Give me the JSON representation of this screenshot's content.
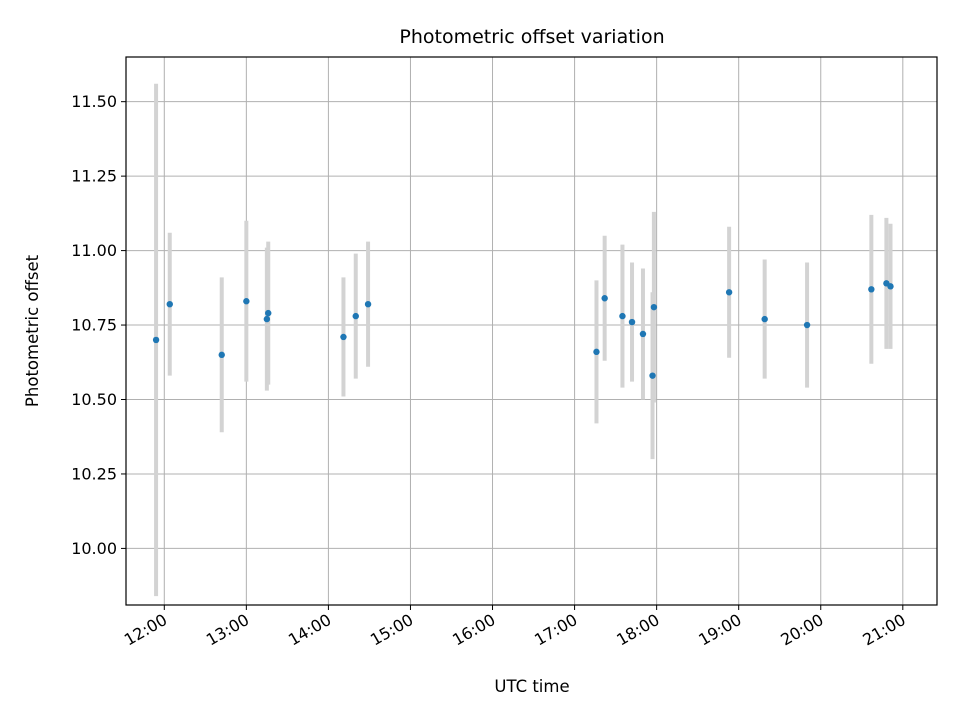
{
  "chart_data": {
    "type": "scatter",
    "title": "Photometric offset variation",
    "xlabel": "UTC time",
    "ylabel": "Photometric offset",
    "x_ticks": [
      "12:00",
      "13:00",
      "14:00",
      "15:00",
      "16:00",
      "17:00",
      "18:00",
      "19:00",
      "20:00",
      "21:00"
    ],
    "y_ticks": [
      "10.00",
      "10.25",
      "10.50",
      "10.75",
      "11.00",
      "11.25",
      "11.50"
    ],
    "xlim": [
      "11:32",
      "21:25"
    ],
    "ylim": [
      9.81,
      11.65
    ],
    "grid": true,
    "marker_color": "#1f77b4",
    "errorbar_color": "#d3d3d3",
    "points": [
      {
        "time": "11:54",
        "value": 10.7,
        "err": 0.86
      },
      {
        "time": "12:04",
        "value": 10.82,
        "err": 0.24
      },
      {
        "time": "12:42",
        "value": 10.65,
        "err": 0.26
      },
      {
        "time": "13:00",
        "value": 10.83,
        "err": 0.27
      },
      {
        "time": "13:15",
        "value": 10.77,
        "err": 0.24
      },
      {
        "time": "13:16",
        "value": 10.79,
        "err": 0.24
      },
      {
        "time": "14:11",
        "value": 10.71,
        "err": 0.2
      },
      {
        "time": "14:20",
        "value": 10.78,
        "err": 0.21
      },
      {
        "time": "14:29",
        "value": 10.82,
        "err": 0.21
      },
      {
        "time": "17:16",
        "value": 10.66,
        "err": 0.24
      },
      {
        "time": "17:22",
        "value": 10.84,
        "err": 0.21
      },
      {
        "time": "17:35",
        "value": 10.78,
        "err": 0.24
      },
      {
        "time": "17:42",
        "value": 10.76,
        "err": 0.2
      },
      {
        "time": "17:50",
        "value": 10.72,
        "err": 0.22
      },
      {
        "time": "17:57",
        "value": 10.58,
        "err": 0.28
      },
      {
        "time": "17:58",
        "value": 10.81,
        "err": 0.32
      },
      {
        "time": "18:53",
        "value": 10.86,
        "err": 0.22
      },
      {
        "time": "19:19",
        "value": 10.77,
        "err": 0.2
      },
      {
        "time": "19:50",
        "value": 10.75,
        "err": 0.21
      },
      {
        "time": "20:37",
        "value": 10.87,
        "err": 0.25
      },
      {
        "time": "20:48",
        "value": 10.89,
        "err": 0.22
      },
      {
        "time": "20:51",
        "value": 10.88,
        "err": 0.21
      }
    ]
  }
}
